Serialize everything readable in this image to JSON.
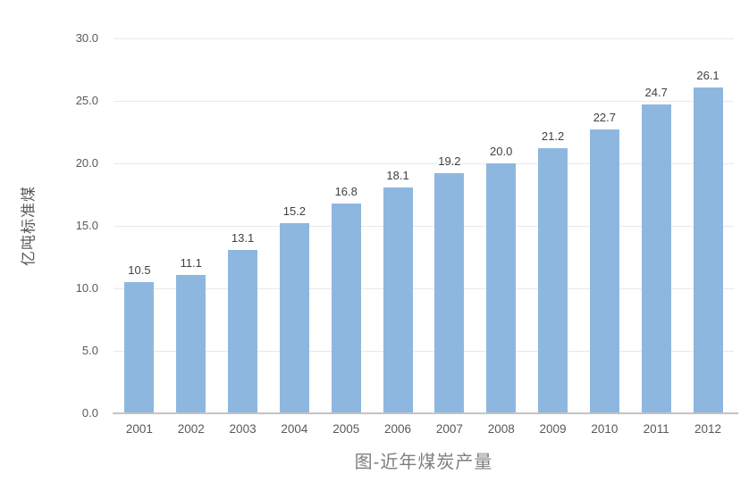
{
  "chart_data": {
    "type": "bar",
    "title": "图-近年煤炭产量",
    "xlabel": "",
    "ylabel": "亿吨标准煤",
    "categories": [
      "2001",
      "2002",
      "2003",
      "2004",
      "2005",
      "2006",
      "2007",
      "2008",
      "2009",
      "2010",
      "2011",
      "2012"
    ],
    "values": [
      10.5,
      11.1,
      13.1,
      15.2,
      16.8,
      18.1,
      19.2,
      20.0,
      21.2,
      22.7,
      24.7,
      26.1
    ],
    "data_labels": [
      "10.5",
      "11.1",
      "13.1",
      "15.2",
      "16.8",
      "18.1",
      "19.2",
      "20.0",
      "21.2",
      "22.7",
      "24.7",
      "26.1"
    ],
    "ylim": [
      0,
      30
    ],
    "ytick_step": 5,
    "ytick_values": [
      30,
      25,
      20,
      15,
      10,
      5,
      0
    ],
    "ytick_labels": [
      "30.0",
      "25.0",
      "20.0",
      "15.0",
      "10.0",
      "5.0",
      "0.0"
    ],
    "grid": true,
    "legend": false,
    "colors": {
      "bar_fill": "#8eb7e0",
      "gridline": "#e9e9e9",
      "axis_line": "#c3c3c3",
      "tick_label": "#595959",
      "data_label": "#404040",
      "title": "#7f7f7f"
    }
  }
}
